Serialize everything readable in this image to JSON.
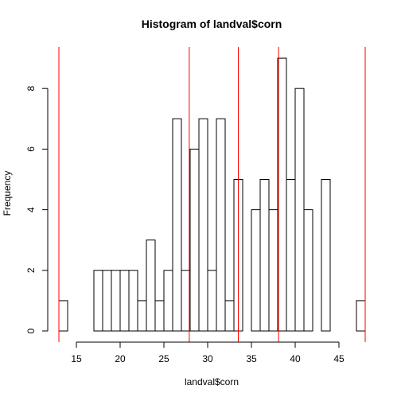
{
  "chart_data": {
    "type": "bar",
    "title": "Histogram of landval$corn",
    "xlabel": "landval$corn",
    "ylabel": "Frequency",
    "bin_start": 13,
    "bin_width": 1,
    "counts": [
      1,
      0,
      0,
      0,
      2,
      2,
      2,
      2,
      2,
      1,
      3,
      1,
      2,
      7,
      2,
      6,
      7,
      2,
      7,
      1,
      5,
      0,
      4,
      5,
      4,
      9,
      5,
      8,
      4,
      0,
      5,
      0,
      0,
      0,
      1
    ],
    "xlim": [
      13,
      48
    ],
    "ylim": [
      0,
      9
    ],
    "x_ticks": [
      15,
      20,
      25,
      30,
      35,
      40,
      45
    ],
    "y_ticks": [
      0,
      2,
      4,
      6,
      8
    ],
    "vlines": [
      13,
      27.9,
      33.5,
      38.1,
      48
    ],
    "vline_color": "#ff0000",
    "bar_stroke": "#000000",
    "grid": false
  }
}
